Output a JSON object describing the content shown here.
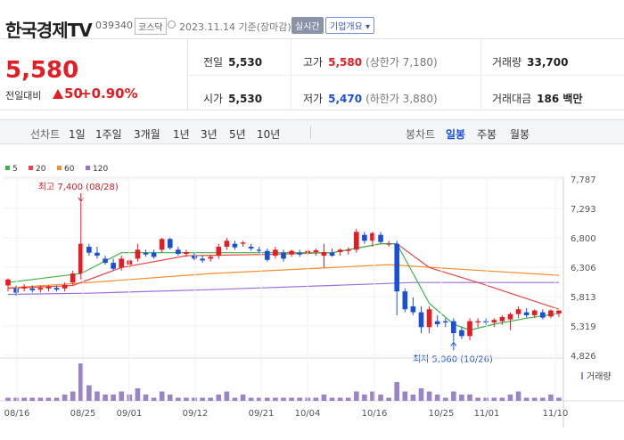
{
  "header": {
    "name": "한국경제TV",
    "code": "039340",
    "market": "코스닥",
    "date": "2023.11.14 기준(장마감)",
    "realtime_btn": "실시간",
    "corp_btn": "기업개요 ▾"
  },
  "quote": {
    "price": "5,580",
    "change_label": "전일대비",
    "change_value": "50",
    "change_pct": "+0.90%",
    "prev_label": "전일",
    "prev_value": "5,530",
    "open_label": "시가",
    "open_value": "5,530",
    "high_label": "고가",
    "high_value": "5,580",
    "upper_limit": "(상한가 7,180)",
    "low_label": "저가",
    "low_value": "5,470",
    "lower_limit": "(하한가 3,880)",
    "volume_label": "거래량",
    "volume_value": "33,700",
    "amount_label": "거래대금",
    "amount_value": "186 백만"
  },
  "toolbar": {
    "line_label": "선차트",
    "ranges": [
      "1일",
      "1주일",
      "3개월",
      "1년",
      "3년",
      "5년",
      "10년"
    ],
    "candle_label": "봉차트",
    "periods": [
      "일봉",
      "주봉",
      "월봉"
    ],
    "active_period": "일봉"
  },
  "colors": {
    "up": "#e51c23",
    "down": "#1a4fd6",
    "ma5": "#3cb44b",
    "ma20": "#e6474a",
    "ma60": "#f28e2b",
    "ma120": "#9b6fd1",
    "volume": "#9a84c8"
  },
  "chart_data": {
    "type": "candlestick",
    "legend": [
      {
        "name": "5",
        "color": "#3cb44b"
      },
      {
        "name": "20",
        "color": "#e6474a"
      },
      {
        "name": "60",
        "color": "#f28e2b"
      },
      {
        "name": "120",
        "color": "#9b6fd1"
      }
    ],
    "y_ticks": [
      7787,
      7293,
      6800,
      6306,
      5813,
      5319,
      4826
    ],
    "ylim": [
      4826,
      7787
    ],
    "x_ticks": [
      "08/16",
      "08/25",
      "09/01",
      "09/12",
      "09/21",
      "10/04",
      "10/16",
      "10/25",
      "11/01",
      "11/10"
    ],
    "annotations": {
      "high": {
        "label": "최고 7,400 (08/28)",
        "value": 7400
      },
      "low": {
        "label": "최저 5,060 (10/26)",
        "value": 5060
      }
    },
    "volume_label": "거래량",
    "candles": [
      {
        "o": 6000,
        "h": 6120,
        "l": 5900,
        "c": 6100
      },
      {
        "o": 5950,
        "h": 6000,
        "l": 5830,
        "c": 5880
      },
      {
        "o": 5950,
        "h": 6020,
        "l": 5900,
        "c": 5980
      },
      {
        "o": 5950,
        "h": 6000,
        "l": 5880,
        "c": 5920
      },
      {
        "o": 5930,
        "h": 6000,
        "l": 5880,
        "c": 5960
      },
      {
        "o": 5950,
        "h": 6000,
        "l": 5900,
        "c": 5980
      },
      {
        "o": 5960,
        "h": 6000,
        "l": 5900,
        "c": 5930
      },
      {
        "o": 5950,
        "h": 6050,
        "l": 5900,
        "c": 6010
      },
      {
        "o": 6050,
        "h": 6250,
        "l": 6000,
        "c": 6200
      },
      {
        "o": 6200,
        "h": 7400,
        "l": 6100,
        "c": 6700
      },
      {
        "o": 6650,
        "h": 6700,
        "l": 6500,
        "c": 6550
      },
      {
        "o": 6550,
        "h": 6650,
        "l": 6450,
        "c": 6500
      },
      {
        "o": 6450,
        "h": 6500,
        "l": 6350,
        "c": 6380
      },
      {
        "o": 6380,
        "h": 6450,
        "l": 6250,
        "c": 6280
      },
      {
        "o": 6300,
        "h": 6500,
        "l": 6250,
        "c": 6450
      },
      {
        "o": 6350,
        "h": 6450,
        "l": 6300,
        "c": 6420
      },
      {
        "o": 6450,
        "h": 6700,
        "l": 6400,
        "c": 6600
      },
      {
        "o": 6550,
        "h": 6600,
        "l": 6480,
        "c": 6520
      },
      {
        "o": 6550,
        "h": 6600,
        "l": 6450,
        "c": 6480
      },
      {
        "o": 6600,
        "h": 6800,
        "l": 6550,
        "c": 6780
      },
      {
        "o": 6780,
        "h": 6800,
        "l": 6600,
        "c": 6630
      },
      {
        "o": 6600,
        "h": 6650,
        "l": 6500,
        "c": 6530
      },
      {
        "o": 6530,
        "h": 6600,
        "l": 6480,
        "c": 6560
      },
      {
        "o": 6500,
        "h": 6550,
        "l": 6420,
        "c": 6450
      },
      {
        "o": 6450,
        "h": 6500,
        "l": 6380,
        "c": 6420
      },
      {
        "o": 6450,
        "h": 6520,
        "l": 6400,
        "c": 6480
      },
      {
        "o": 6500,
        "h": 6700,
        "l": 6450,
        "c": 6650
      },
      {
        "o": 6650,
        "h": 6800,
        "l": 6600,
        "c": 6750
      },
      {
        "o": 6700,
        "h": 6750,
        "l": 6600,
        "c": 6640
      },
      {
        "o": 6700,
        "h": 6750,
        "l": 6650,
        "c": 6720
      },
      {
        "o": 6650,
        "h": 6700,
        "l": 6580,
        "c": 6620
      },
      {
        "o": 6600,
        "h": 6650,
        "l": 6550,
        "c": 6580
      },
      {
        "o": 6580,
        "h": 6620,
        "l": 6400,
        "c": 6430
      },
      {
        "o": 6500,
        "h": 6650,
        "l": 6450,
        "c": 6600
      },
      {
        "o": 6550,
        "h": 6600,
        "l": 6400,
        "c": 6450
      },
      {
        "o": 6520,
        "h": 6600,
        "l": 6480,
        "c": 6580
      },
      {
        "o": 6550,
        "h": 6600,
        "l": 6480,
        "c": 6520
      },
      {
        "o": 6550,
        "h": 6620,
        "l": 6500,
        "c": 6580
      },
      {
        "o": 6560,
        "h": 6620,
        "l": 6500,
        "c": 6590
      },
      {
        "o": 6500,
        "h": 6700,
        "l": 6300,
        "c": 6560
      },
      {
        "o": 6550,
        "h": 6620,
        "l": 6480,
        "c": 6500
      },
      {
        "o": 6560,
        "h": 6620,
        "l": 6500,
        "c": 6600
      },
      {
        "o": 6580,
        "h": 6640,
        "l": 6520,
        "c": 6600
      },
      {
        "o": 6600,
        "h": 6950,
        "l": 6550,
        "c": 6900
      },
      {
        "o": 6850,
        "h": 6900,
        "l": 6700,
        "c": 6750
      },
      {
        "o": 6750,
        "h": 6900,
        "l": 6650,
        "c": 6880
      },
      {
        "o": 6850,
        "h": 6900,
        "l": 6700,
        "c": 6730
      },
      {
        "o": 6700,
        "h": 6750,
        "l": 6650,
        "c": 6700
      },
      {
        "o": 6700,
        "h": 6750,
        "l": 5500,
        "c": 5900
      },
      {
        "o": 5900,
        "h": 5950,
        "l": 5550,
        "c": 5600
      },
      {
        "o": 5650,
        "h": 5800,
        "l": 5500,
        "c": 5550
      },
      {
        "o": 5550,
        "h": 5650,
        "l": 5200,
        "c": 5300
      },
      {
        "o": 5300,
        "h": 5650,
        "l": 5200,
        "c": 5600
      },
      {
        "o": 5400,
        "h": 5500,
        "l": 5300,
        "c": 5350
      },
      {
        "o": 5400,
        "h": 5450,
        "l": 5300,
        "c": 5380
      },
      {
        "o": 5400,
        "h": 5450,
        "l": 5060,
        "c": 5200
      },
      {
        "o": 5250,
        "h": 5300,
        "l": 5100,
        "c": 5150
      },
      {
        "o": 5150,
        "h": 5450,
        "l": 5080,
        "c": 5400
      },
      {
        "o": 5380,
        "h": 5450,
        "l": 5300,
        "c": 5400
      },
      {
        "o": 5400,
        "h": 5450,
        "l": 5340,
        "c": 5380
      },
      {
        "o": 5380,
        "h": 5450,
        "l": 5300,
        "c": 5420
      },
      {
        "o": 5400,
        "h": 5500,
        "l": 5340,
        "c": 5470
      },
      {
        "o": 5430,
        "h": 5550,
        "l": 5250,
        "c": 5520
      },
      {
        "o": 5520,
        "h": 5650,
        "l": 5450,
        "c": 5600
      },
      {
        "o": 5550,
        "h": 5620,
        "l": 5460,
        "c": 5500
      },
      {
        "o": 5500,
        "h": 5600,
        "l": 5450,
        "c": 5580
      },
      {
        "o": 5550,
        "h": 5600,
        "l": 5430,
        "c": 5460
      },
      {
        "o": 5480,
        "h": 5600,
        "l": 5450,
        "c": 5580
      },
      {
        "o": 5530,
        "h": 5580,
        "l": 5470,
        "c": 5580
      }
    ],
    "ma5": [
      [
        0,
        6050
      ],
      [
        9,
        6200
      ],
      [
        14,
        6550
      ],
      [
        24,
        6550
      ],
      [
        32,
        6550
      ],
      [
        40,
        6550
      ],
      [
        46,
        6700
      ],
      [
        48,
        6700
      ],
      [
        50,
        6200
      ],
      [
        52,
        5700
      ],
      [
        55,
        5350
      ],
      [
        57,
        5250
      ],
      [
        60,
        5350
      ],
      [
        64,
        5450
      ],
      [
        68,
        5530
      ]
    ],
    "ma20": [
      [
        0,
        5950
      ],
      [
        8,
        6000
      ],
      [
        14,
        6300
      ],
      [
        22,
        6500
      ],
      [
        32,
        6520
      ],
      [
        40,
        6550
      ],
      [
        46,
        6700
      ],
      [
        48,
        6700
      ],
      [
        52,
        6300
      ],
      [
        58,
        6050
      ],
      [
        64,
        5780
      ],
      [
        68,
        5600
      ]
    ],
    "ma60": [
      [
        0,
        5960
      ],
      [
        10,
        6050
      ],
      [
        25,
        6200
      ],
      [
        40,
        6300
      ],
      [
        47,
        6350
      ],
      [
        55,
        6280
      ],
      [
        68,
        6170
      ]
    ],
    "ma120": [
      [
        0,
        5850
      ],
      [
        10,
        5870
      ],
      [
        25,
        5930
      ],
      [
        40,
        6000
      ],
      [
        50,
        6050
      ],
      [
        60,
        6050
      ],
      [
        68,
        6050
      ]
    ],
    "volumes": [
      1,
      1,
      1,
      1,
      1,
      1,
      1,
      2,
      3,
      12,
      5,
      3,
      2,
      2,
      3,
      2,
      4,
      2,
      1,
      3,
      2,
      1,
      1,
      1,
      1,
      1,
      2,
      3,
      1,
      2,
      1,
      1,
      1,
      1,
      1,
      1,
      1,
      1,
      1,
      2,
      1,
      1,
      1,
      3,
      2,
      3,
      2,
      1,
      6,
      3,
      2,
      4,
      3,
      2,
      1,
      3,
      2,
      2,
      1,
      1,
      1,
      1,
      2,
      3,
      1,
      1,
      1,
      2,
      1
    ],
    "volume_max": 12
  }
}
